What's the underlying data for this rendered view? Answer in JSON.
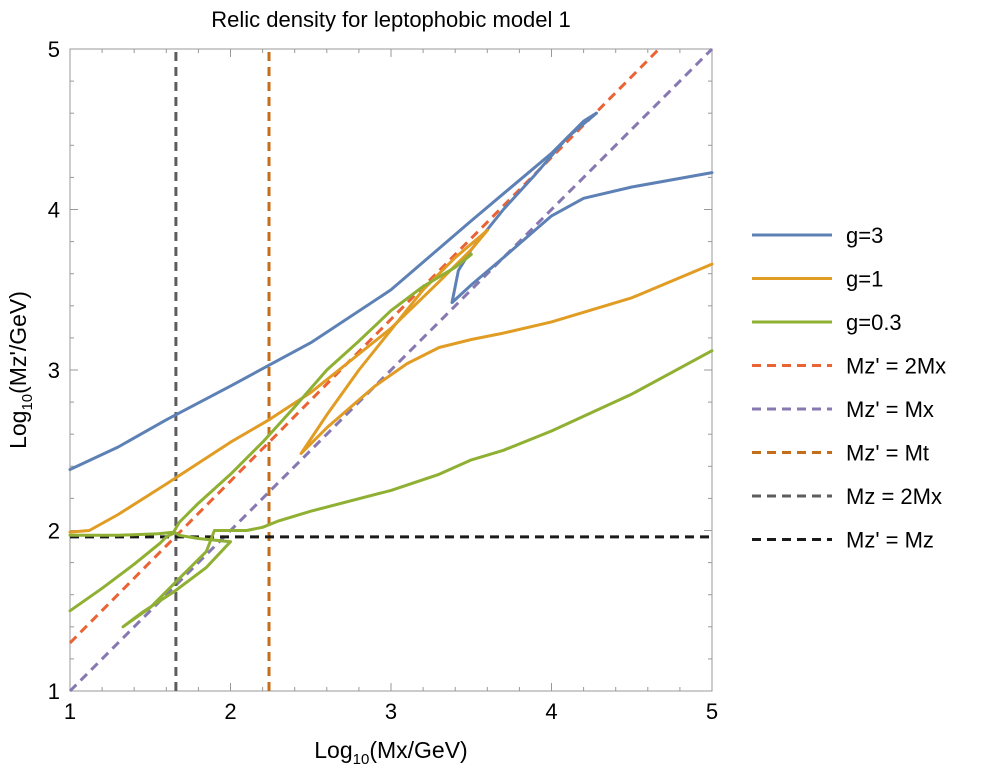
{
  "chart_data": {
    "type": "line",
    "title": "Relic density for leptophobic model 1",
    "xlabel": {
      "prefix": "Log",
      "sub": "10",
      "suffix": "(Mx/GeV)"
    },
    "ylabel": {
      "prefix": "Log",
      "sub": "10",
      "suffix": "(Mz'/GeV)"
    },
    "xlim": [
      1,
      5
    ],
    "ylim": [
      1,
      5
    ],
    "xticks": [
      1,
      2,
      3,
      4,
      5
    ],
    "yticks": [
      1,
      2,
      3,
      4,
      5
    ],
    "grid": false,
    "legend_position": "right",
    "series": [
      {
        "name": "g=3",
        "color": "#5E81B5",
        "dash": false,
        "segments": [
          [
            [
              1.0,
              2.38
            ],
            [
              1.3,
              2.52
            ],
            [
              1.6,
              2.69
            ],
            [
              2.0,
              2.9
            ],
            [
              2.24,
              3.03
            ],
            [
              2.5,
              3.17
            ],
            [
              3.0,
              3.5
            ],
            [
              3.5,
              3.93
            ],
            [
              4.0,
              4.35
            ],
            [
              4.2,
              4.55
            ],
            [
              4.28,
              4.6
            ]
          ],
          [
            [
              4.28,
              4.6
            ],
            [
              4.1,
              4.45
            ],
            [
              3.9,
              4.22
            ],
            [
              3.7,
              4.0
            ],
            [
              3.5,
              3.75
            ],
            [
              3.42,
              3.62
            ],
            [
              3.38,
              3.42
            ],
            [
              3.5,
              3.53
            ],
            [
              3.7,
              3.7
            ],
            [
              4.0,
              3.96
            ],
            [
              4.2,
              4.07
            ],
            [
              4.5,
              4.14
            ],
            [
              5.0,
              4.23
            ]
          ]
        ]
      },
      {
        "name": "g=1",
        "color": "#E19C24",
        "dash": false,
        "segments": [
          [
            [
              1.0,
              1.99
            ],
            [
              1.12,
              2.0
            ],
            [
              1.3,
              2.1
            ],
            [
              1.6,
              2.29
            ],
            [
              2.0,
              2.55
            ],
            [
              2.24,
              2.69
            ],
            [
              2.5,
              2.86
            ],
            [
              3.0,
              3.26
            ],
            [
              3.3,
              3.55
            ],
            [
              3.5,
              3.75
            ],
            [
              3.6,
              3.87
            ]
          ],
          [
            [
              3.6,
              3.87
            ],
            [
              3.4,
              3.7
            ],
            [
              3.2,
              3.5
            ],
            [
              3.0,
              3.25
            ],
            [
              2.8,
              3.0
            ],
            [
              2.6,
              2.72
            ],
            [
              2.44,
              2.48
            ],
            [
              2.6,
              2.64
            ],
            [
              2.9,
              2.9
            ],
            [
              3.1,
              3.04
            ],
            [
              3.3,
              3.14
            ],
            [
              3.5,
              3.19
            ],
            [
              3.7,
              3.23
            ],
            [
              4.0,
              3.3
            ],
            [
              4.5,
              3.45
            ],
            [
              5.0,
              3.66
            ]
          ]
        ]
      },
      {
        "name": "g=0.3",
        "color": "#8FB032",
        "dash": false,
        "segments": [
          [
            [
              1.0,
              1.5
            ],
            [
              1.2,
              1.64
            ],
            [
              1.4,
              1.79
            ],
            [
              1.56,
              1.92
            ],
            [
              1.6,
              1.96
            ],
            [
              1.64,
              1.98
            ],
            [
              1.68,
              2.05
            ],
            [
              1.8,
              2.17
            ],
            [
              2.0,
              2.35
            ],
            [
              2.2,
              2.55
            ],
            [
              2.4,
              2.77
            ],
            [
              2.6,
              3.0
            ],
            [
              2.8,
              3.18
            ],
            [
              3.0,
              3.37
            ],
            [
              3.2,
              3.52
            ],
            [
              3.4,
              3.64
            ],
            [
              3.5,
              3.72
            ]
          ],
          [
            [
              1.0,
              1.97
            ],
            [
              1.3,
              1.97
            ],
            [
              1.55,
              1.98
            ],
            [
              1.65,
              1.99
            ],
            [
              1.68,
              1.97
            ],
            [
              1.8,
              1.95
            ],
            [
              2.0,
              1.93
            ],
            [
              1.85,
              1.77
            ],
            [
              1.65,
              1.62
            ],
            [
              1.45,
              1.49
            ],
            [
              1.33,
              1.4
            ],
            [
              1.5,
              1.52
            ],
            [
              1.7,
              1.72
            ],
            [
              1.85,
              1.87
            ],
            [
              1.9,
              2.0
            ],
            [
              1.95,
              2.0
            ],
            [
              2.1,
              2.0
            ],
            [
              2.2,
              2.02
            ],
            [
              2.3,
              2.06
            ],
            [
              2.5,
              2.12
            ],
            [
              3.0,
              2.25
            ],
            [
              3.3,
              2.35
            ],
            [
              3.5,
              2.44
            ],
            [
              3.7,
              2.5
            ],
            [
              4.0,
              2.62
            ],
            [
              4.5,
              2.85
            ],
            [
              5.0,
              3.12
            ]
          ]
        ]
      },
      {
        "name": "Mz' = 2Mx",
        "color": "#EB6235",
        "dash": true,
        "segments": [
          [
            [
              1.0,
              1.3
            ],
            [
              4.67,
              5.0
            ]
          ]
        ]
      },
      {
        "name": "Mz' = Mx",
        "color": "#8778B3",
        "dash": true,
        "segments": [
          [
            [
              1.0,
              1.0
            ],
            [
              5.0,
              5.0
            ]
          ]
        ]
      },
      {
        "name": "Mz' = Mt",
        "color": "#C56E1A",
        "dash": true,
        "segments": [
          [
            [
              2.24,
              1.0
            ],
            [
              2.24,
              5.0
            ]
          ]
        ]
      },
      {
        "name": "Mz = 2Mx",
        "color": "#5D5D5D",
        "dash": true,
        "segments": [
          [
            [
              1.66,
              1.0
            ],
            [
              1.66,
              5.0
            ]
          ]
        ]
      },
      {
        "name": "Mz' = Mz",
        "color": "#1A1A1A",
        "dash": true,
        "segments": [
          [
            [
              1.0,
              1.96
            ],
            [
              5.0,
              1.96
            ]
          ]
        ]
      }
    ],
    "legend": [
      "g=3",
      "g=1",
      "g=0.3",
      "Mz' = 2Mx",
      "Mz' = Mx",
      "Mz' = Mt",
      "Mz = 2Mx",
      "Mz' = Mz"
    ]
  }
}
